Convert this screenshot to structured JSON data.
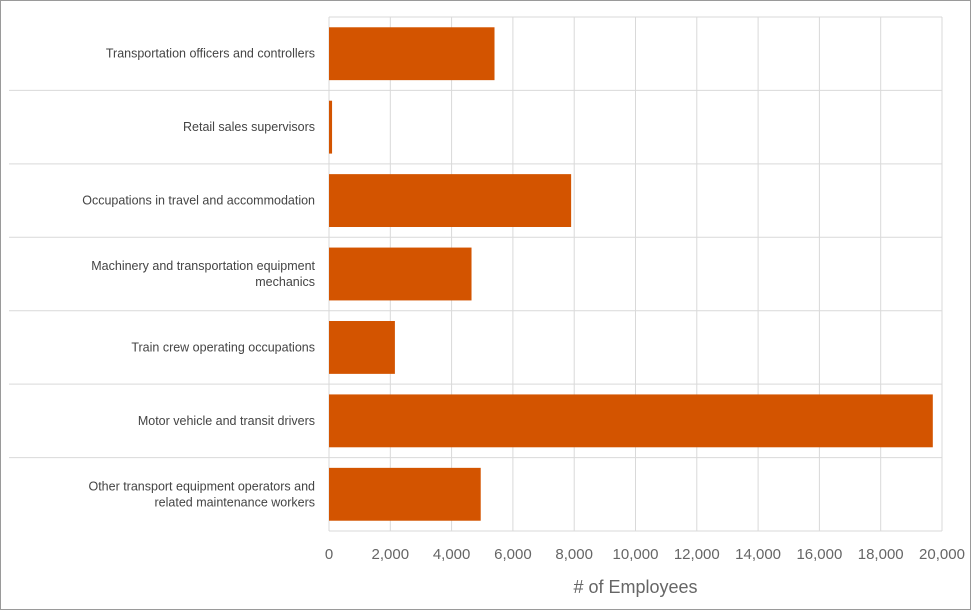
{
  "chart_data": {
    "type": "bar",
    "orientation": "horizontal",
    "categories": [
      [
        "Transportation officers and controllers"
      ],
      [
        "Retail sales supervisors"
      ],
      [
        "Occupations in travel and accommodation"
      ],
      [
        "Machinery and transportation equipment",
        "mechanics"
      ],
      [
        "Train crew operating occupations"
      ],
      [
        "Motor vehicle and transit drivers"
      ],
      [
        "Other transport equipment operators and",
        "related maintenance workers"
      ]
    ],
    "values": [
      5400,
      100,
      7900,
      4650,
      2150,
      19700,
      4950
    ],
    "xlabel": "# of Employees",
    "ylabel": "",
    "xlim": [
      0,
      20000
    ],
    "xticks": [
      0,
      2000,
      4000,
      6000,
      8000,
      10000,
      12000,
      14000,
      16000,
      18000,
      20000
    ],
    "xtick_labels": [
      "0",
      "2,000",
      "4,000",
      "6,000",
      "8,000",
      "10,000",
      "12,000",
      "14,000",
      "16,000",
      "18,000",
      "20,000"
    ],
    "grid": true,
    "bar_color": "#d35400",
    "grid_color": "#d9d9d9"
  }
}
